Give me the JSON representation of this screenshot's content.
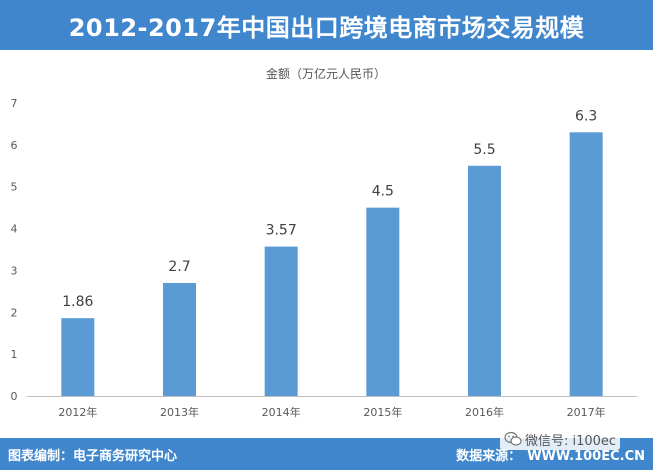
{
  "title": "2012-2017年中国出口跨境电商市场交易规模",
  "footer": {
    "left": "图表编制：电子商务研究中心",
    "source_label": "数据来源：",
    "source_site": "WWW.100EC.CN"
  },
  "watermark": {
    "text": "微信号: i100ec",
    "icon": "wechat-icon"
  },
  "colors": {
    "header": "#3f86cd",
    "bar": "#5b9bd5",
    "axis": "#bfbfbf"
  },
  "chart_data": {
    "type": "bar",
    "unit_label": "金额（万亿元人民币）",
    "categories": [
      "2012年",
      "2013年",
      "2014年",
      "2015年",
      "2016年",
      "2017年"
    ],
    "series": [
      {
        "values": [
          1.86,
          2.7,
          3.57,
          4.5,
          5.5,
          6.3
        ]
      }
    ],
    "data_labels": [
      "1.86",
      "2.7",
      "3.57",
      "4.5",
      "5.5",
      "6.3"
    ],
    "ylim": [
      0,
      7
    ],
    "yticks": [
      0,
      1,
      2,
      3,
      4,
      5,
      6,
      7
    ],
    "grid": false,
    "legend": "none"
  }
}
